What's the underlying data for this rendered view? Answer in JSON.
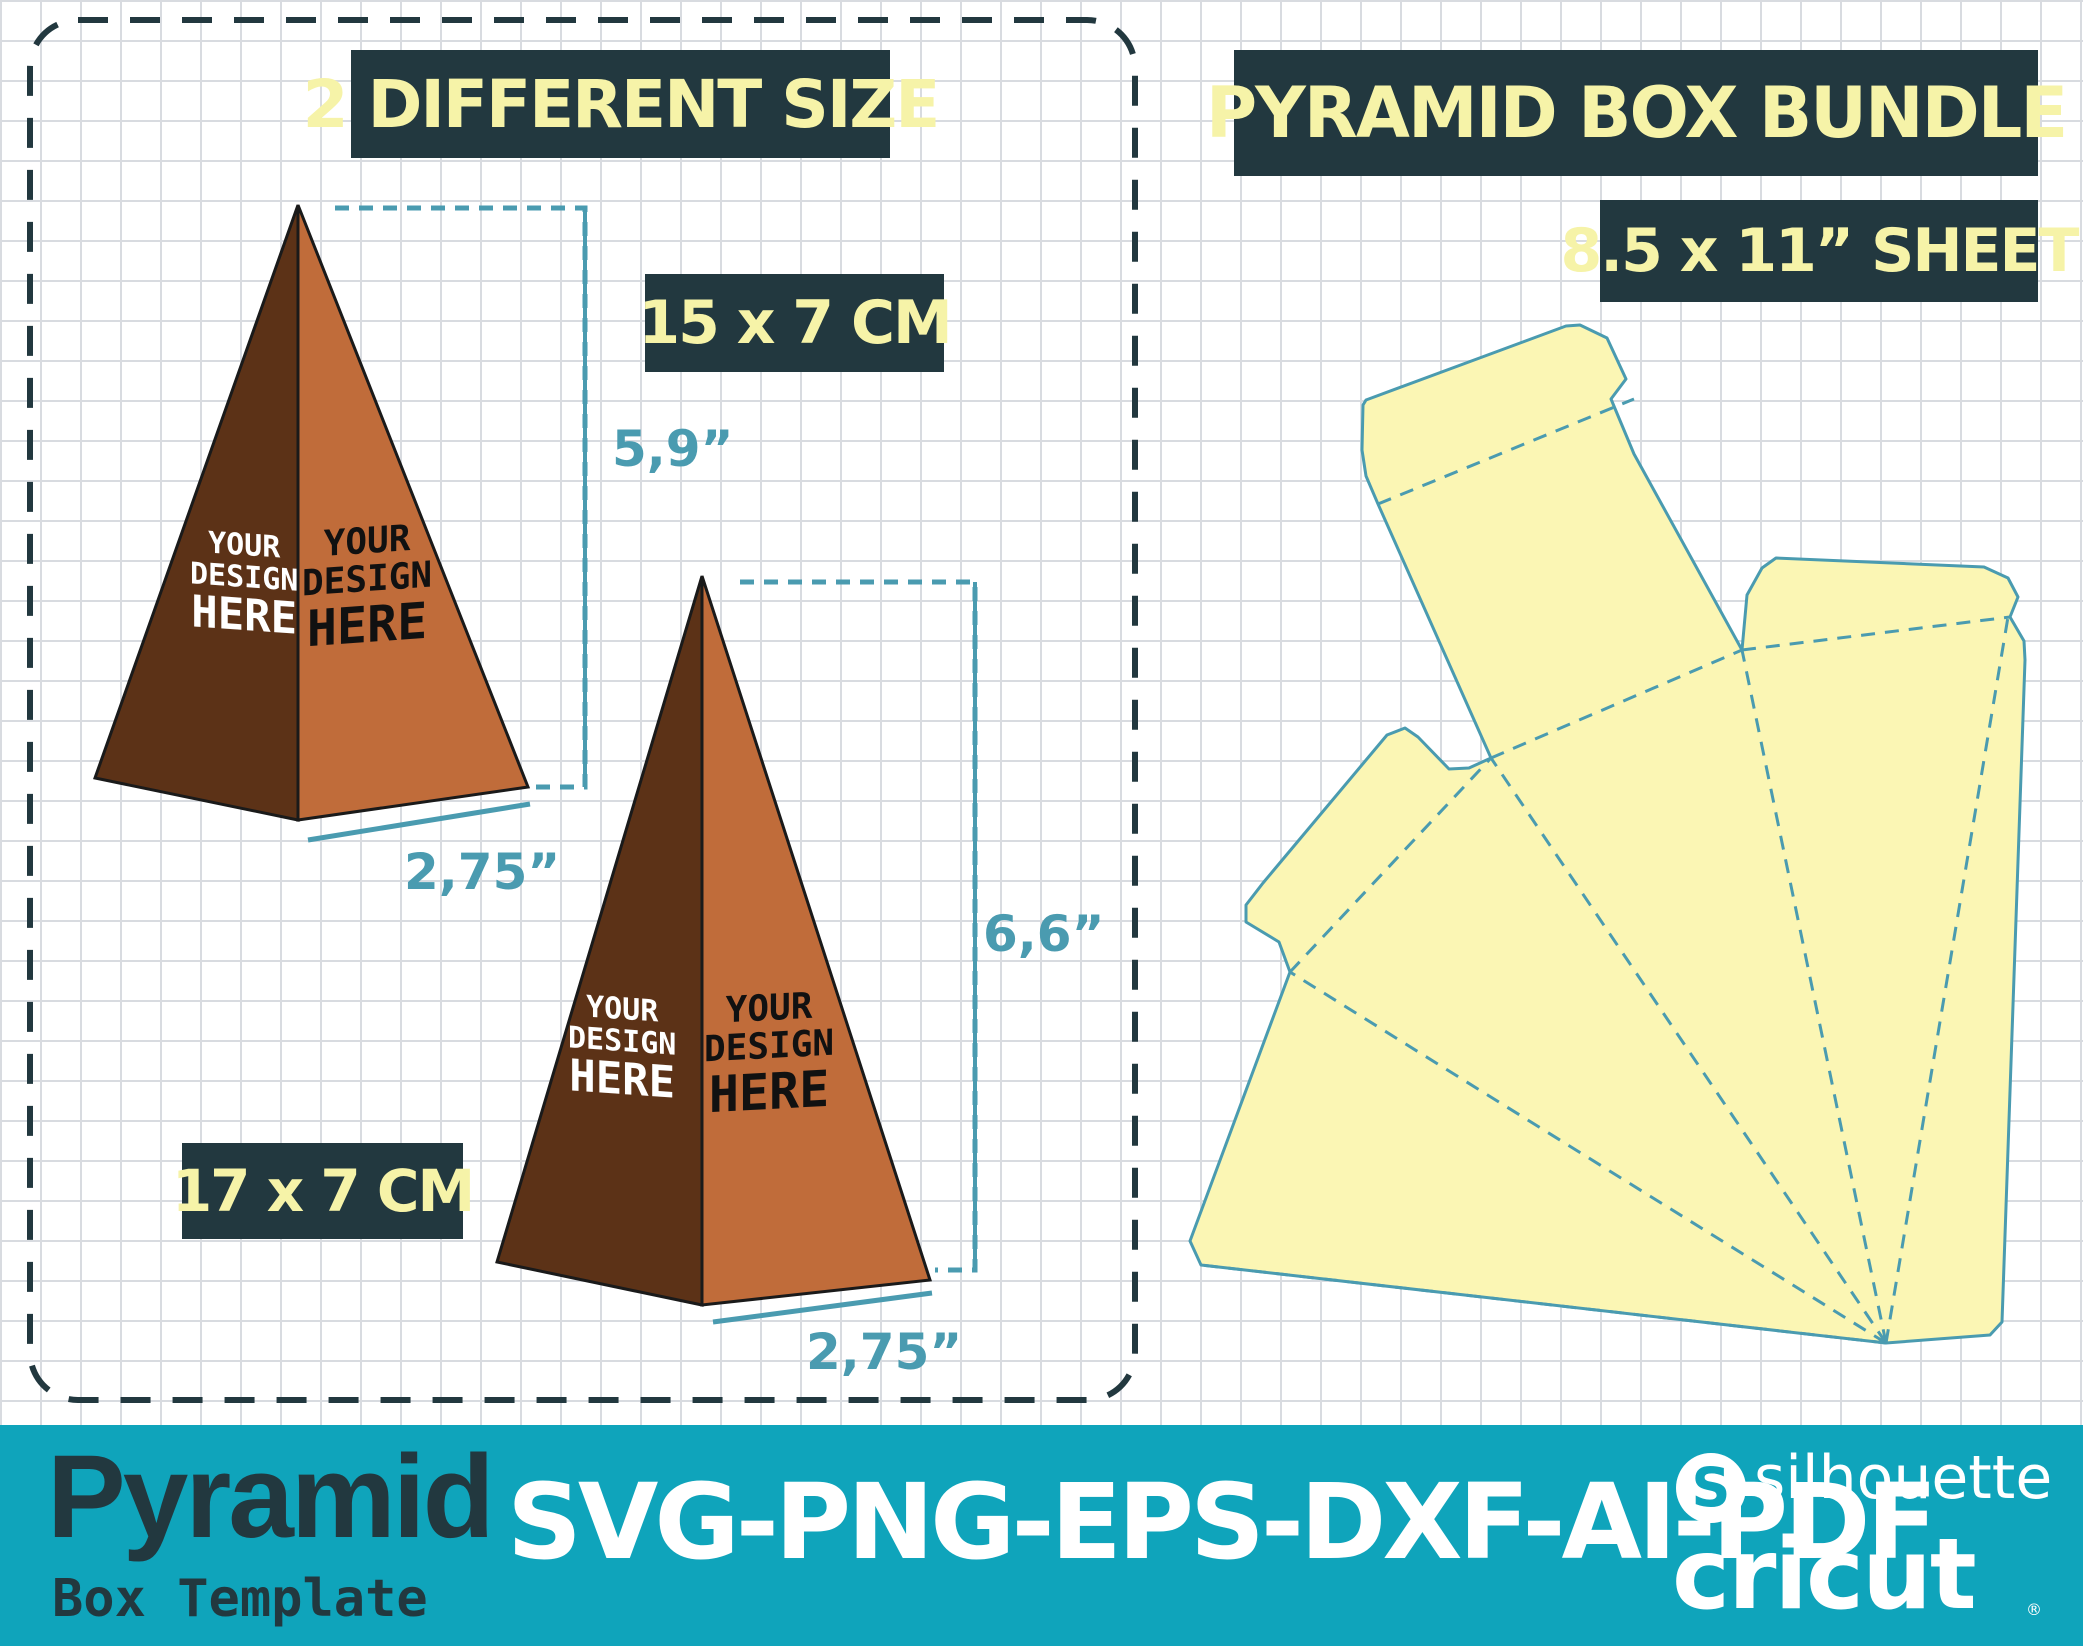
{
  "labels": {
    "sizes": "2 DIFFERENT SIZE",
    "size_small": "15 x 7 CM",
    "size_large": "17 x 7 CM",
    "bundle": "PYRAMID BOX BUNDLE",
    "sheet": "8.5 x 11” SHEET"
  },
  "dimensions": {
    "small_height": "5,9”",
    "small_base": "2,75”",
    "large_height": "6,6”",
    "large_base": "2,75”"
  },
  "design_text": {
    "line1": "YOUR",
    "line2": "DESIGN",
    "line3": "HERE"
  },
  "footer": {
    "title": "Pyramid",
    "subtitle": "Box Template",
    "formats": "SVG-PNG-EPS-DXF-AI-PDF",
    "brand_silhouette": "silhouette",
    "brand_silhouette_icon": "S",
    "brand_cricut": "cricut",
    "brand_registered": "®"
  },
  "colors": {
    "label_bg": "#22383f",
    "label_text": "#f6f3a8",
    "dimension": "#4a9bb0",
    "pyramid_dark": "#5c3217",
    "pyramid_light": "#c06c3a",
    "template_fill": "#fbf6b4",
    "footer_bg": "#0fa4bb"
  }
}
